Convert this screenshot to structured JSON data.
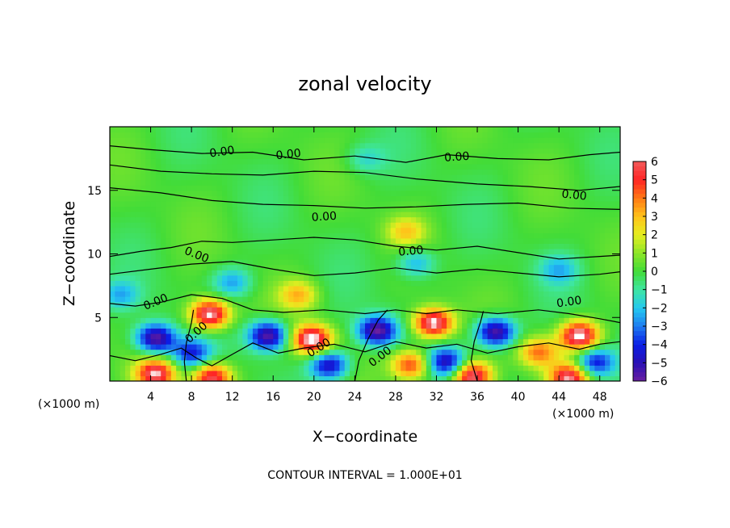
{
  "chart_data": {
    "type": "heatmap",
    "title": "zonal velocity",
    "xlabel": "X−coordinate",
    "ylabel": "Z−coordinate",
    "x_unit_left": "(×1000 m)",
    "x_unit_right": "(×1000 m)",
    "x_ticks": [
      4,
      8,
      12,
      16,
      20,
      24,
      28,
      32,
      36,
      40,
      44,
      48
    ],
    "x_tick_labels": [
      "4",
      "8",
      "12",
      "16",
      "20",
      "24",
      "28",
      "32",
      "36",
      "40",
      "44",
      "48"
    ],
    "y_ticks": [
      5,
      10,
      15
    ],
    "y_tick_labels": [
      "5",
      "10",
      "15"
    ],
    "xlim": [
      0,
      50
    ],
    "ylim": [
      0,
      20
    ],
    "colorbar": {
      "levels": [
        -6,
        -5,
        -4,
        -3,
        -2,
        -1,
        0,
        1,
        2,
        3,
        4,
        5,
        6
      ],
      "labels": [
        "6",
        "5",
        "4",
        "3",
        "2",
        "1",
        "0",
        "−1",
        "−2",
        "−3",
        "−4",
        "−5",
        "−6"
      ]
    },
    "contour_labels": [
      "0.00",
      "0.00",
      "0.00",
      "0.00",
      "0.00",
      "0.00",
      "0.00",
      "0.00",
      "0.00",
      "0.00",
      "0.00",
      "0.00"
    ],
    "highs": [
      {
        "x": 9.8,
        "z": 5.3,
        "v": 7
      },
      {
        "x": 19.8,
        "z": 3.3,
        "v": 7
      },
      {
        "x": 31.7,
        "z": 4.6,
        "v": 7
      },
      {
        "x": 46,
        "z": 3.6,
        "v": 7
      },
      {
        "x": 35.5,
        "z": 0.4,
        "v": 6.5
      },
      {
        "x": 4.5,
        "z": 0.6,
        "v": 6
      },
      {
        "x": 10,
        "z": 0.3,
        "v": 6
      },
      {
        "x": 45,
        "z": 0.3,
        "v": 6
      },
      {
        "x": 29.5,
        "z": 1.3,
        "v": 5
      },
      {
        "x": 42,
        "z": 2.3,
        "v": 4
      },
      {
        "x": 18.5,
        "z": 6.8,
        "v": 3
      },
      {
        "x": 29,
        "z": 11.8,
        "v": 2.5
      }
    ],
    "lows": [
      {
        "x": 4.5,
        "z": 3.4,
        "v": -6
      },
      {
        "x": 15.5,
        "z": 3.6,
        "v": -6
      },
      {
        "x": 26.2,
        "z": 4.0,
        "v": -6
      },
      {
        "x": 37.8,
        "z": 3.9,
        "v": -6
      },
      {
        "x": 21.5,
        "z": 1.3,
        "v": -5
      },
      {
        "x": 33,
        "z": 1.5,
        "v": -5
      },
      {
        "x": 47.5,
        "z": 1.5,
        "v": -4.5
      },
      {
        "x": 8,
        "z": 2.2,
        "v": -4
      },
      {
        "x": 12,
        "z": 7.8,
        "v": -2.5
      },
      {
        "x": 30,
        "z": 9.3,
        "v": -2.5
      },
      {
        "x": 44,
        "z": 8.8,
        "v": -2
      },
      {
        "x": 1,
        "z": 6.8,
        "v": -2.2
      },
      {
        "x": 25,
        "z": 17.5,
        "v": -1.5
      }
    ],
    "note": "CONTOUR INTERVAL = 1.000E+01"
  }
}
